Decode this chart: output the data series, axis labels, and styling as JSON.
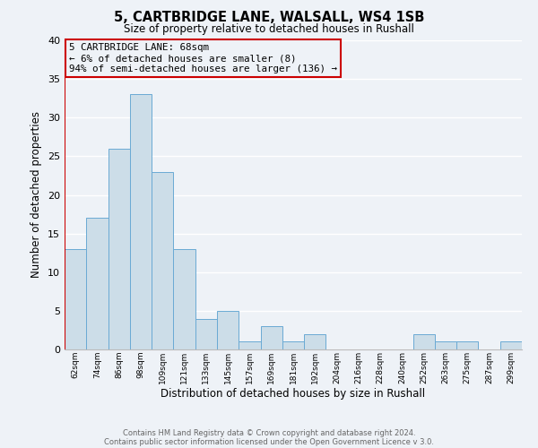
{
  "title": "5, CARTBRIDGE LANE, WALSALL, WS4 1SB",
  "subtitle": "Size of property relative to detached houses in Rushall",
  "xlabel": "Distribution of detached houses by size in Rushall",
  "ylabel": "Number of detached properties",
  "bar_color": "#ccdde8",
  "bar_edge_color": "#6aaad4",
  "background_color": "#eef2f7",
  "grid_color": "#ffffff",
  "annotation_line_color": "#cc0000",
  "categories": [
    "62sqm",
    "74sqm",
    "86sqm",
    "98sqm",
    "109sqm",
    "121sqm",
    "133sqm",
    "145sqm",
    "157sqm",
    "169sqm",
    "181sqm",
    "192sqm",
    "204sqm",
    "216sqm",
    "228sqm",
    "240sqm",
    "252sqm",
    "263sqm",
    "275sqm",
    "287sqm",
    "299sqm"
  ],
  "values": [
    13,
    17,
    26,
    33,
    23,
    13,
    4,
    5,
    1,
    3,
    1,
    2,
    0,
    0,
    0,
    0,
    2,
    1,
    1,
    0,
    1
  ],
  "ylim": [
    0,
    40
  ],
  "yticks": [
    0,
    5,
    10,
    15,
    20,
    25,
    30,
    35,
    40
  ],
  "annotation_box_text": "5 CARTBRIDGE LANE: 68sqm\n← 6% of detached houses are smaller (8)\n94% of semi-detached houses are larger (136) →",
  "footer_line1": "Contains HM Land Registry data © Crown copyright and database right 2024.",
  "footer_line2": "Contains public sector information licensed under the Open Government Licence v 3.0."
}
